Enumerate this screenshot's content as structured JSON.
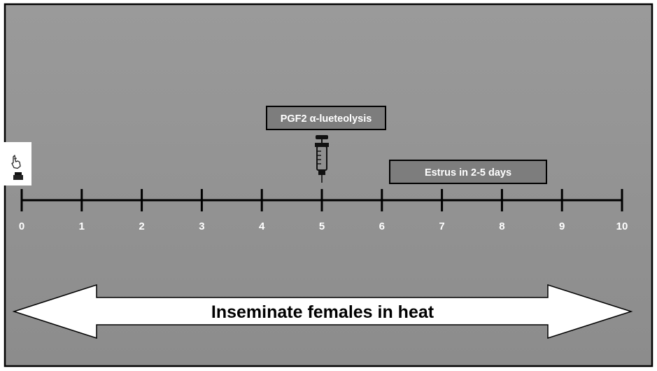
{
  "colors": {
    "background_top": "#9a9a9a",
    "background_bottom": "#8c8c8c",
    "border": "#000000",
    "axis": "#000000",
    "label_box_fill": "#7d7d7d",
    "arrow_fill": "#ffffff"
  },
  "timeline": {
    "min": 0,
    "max": 10,
    "ticks": [
      "0",
      "1",
      "2",
      "3",
      "4",
      "5",
      "6",
      "7",
      "8",
      "9",
      "10"
    ]
  },
  "events": {
    "pgf2": {
      "label": "PGF2 α-lueteolysis",
      "day": 5,
      "icon": "syringe-icon"
    },
    "estrus": {
      "label": "Estrus in 2-5 days",
      "start_day": 6.15,
      "end_day": 8.75
    },
    "start_marker": {
      "day": 0,
      "icon": "implant-device-icon"
    }
  },
  "banner": {
    "label": "Inseminate females in heat"
  }
}
